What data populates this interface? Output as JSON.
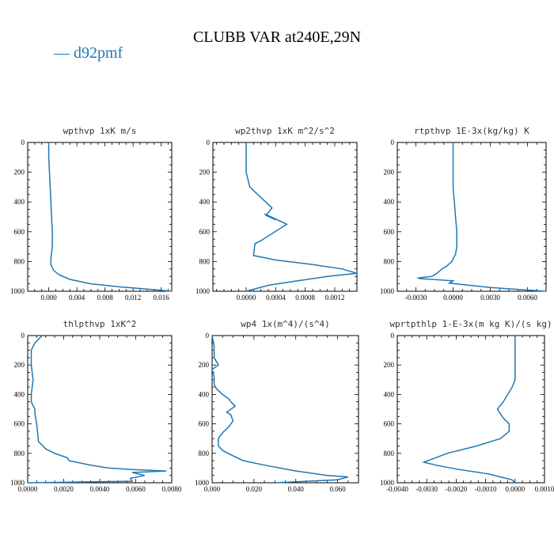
{
  "figure": {
    "title": "CLUBB VAR at240E,29N",
    "legend": "— d92pmf",
    "line_color": "#1f77b4"
  },
  "chart_data": [
    {
      "type": "line",
      "title": "wpthvp  1xK m/s",
      "xlim": [
        -0.003,
        0.0175
      ],
      "ylim": [
        1000,
        0
      ],
      "xticks": [
        0.0,
        0.004,
        0.008,
        0.012,
        0.016
      ],
      "xtick_labels": [
        "0.000",
        "0.004",
        "0.008",
        "0.012",
        "0.016"
      ],
      "yticks": [
        0,
        200,
        400,
        600,
        800,
        1000
      ],
      "series": [
        {
          "x": [
            0.0,
            0.0,
            0.0001,
            0.0002,
            0.0003,
            0.0004,
            0.0005,
            0.0005,
            0.0003,
            0.0003,
            0.0007,
            0.0015,
            0.003,
            0.006,
            0.01,
            0.014,
            0.0175
          ],
          "y": [
            0,
            100,
            200,
            300,
            400,
            500,
            600,
            700,
            780,
            820,
            860,
            890,
            920,
            950,
            970,
            985,
            1000
          ]
        }
      ]
    },
    {
      "type": "line",
      "title": "wp2thvp  1xK m^2/s^2",
      "xlim": [
        -0.00045,
        0.0015
      ],
      "ylim": [
        1000,
        0
      ],
      "xticks": [
        0.0,
        0.0004,
        0.0008,
        0.0012
      ],
      "xtick_labels": [
        "0.0000",
        "0.0004",
        "0.0008",
        "0.0012"
      ],
      "yticks": [
        0,
        200,
        400,
        600,
        800,
        1000
      ],
      "series": [
        {
          "x": [
            0.0,
            0.0,
            0.0,
            5e-05,
            0.0002,
            0.00035,
            0.00027,
            0.0004,
            0.00025,
            0.00055,
            0.0002,
            0.00012,
            0.0001,
            0.0004,
            0.0009,
            0.0013,
            0.0015,
            0.0011,
            0.0007,
            0.0003,
            0.0
          ],
          "y": [
            0,
            100,
            200,
            300,
            370,
            440,
            490,
            520,
            480,
            550,
            660,
            680,
            760,
            790,
            820,
            850,
            880,
            900,
            930,
            960,
            1000
          ]
        }
      ]
    },
    {
      "type": "line",
      "title": "rtpthvp  1E-3x(kg/kg) K",
      "xlim": [
        -0.0045,
        0.0075
      ],
      "ylim": [
        1000,
        0
      ],
      "xticks": [
        -0.003,
        0.0,
        0.003,
        0.006
      ],
      "xtick_labels": [
        "-0.0030",
        "0.0000",
        "0.0030",
        "0.0060"
      ],
      "yticks": [
        0,
        200,
        400,
        600,
        800,
        1000
      ],
      "series": [
        {
          "x": [
            0.0,
            0.0,
            0.0,
            0.0,
            0.0001,
            0.0002,
            0.0003,
            0.0003,
            0.0002,
            -0.0001,
            -0.0005,
            -0.0009,
            -0.0013,
            -0.0017,
            -0.0028,
            -0.0027,
            0.0,
            -0.0003,
            0.003,
            0.0075
          ],
          "y": [
            0,
            100,
            200,
            300,
            400,
            500,
            600,
            700,
            750,
            800,
            830,
            850,
            880,
            900,
            910,
            915,
            930,
            945,
            975,
            1000
          ]
        }
      ]
    },
    {
      "type": "line",
      "title": "thlpthvp  1xK^2",
      "xlim": [
        0.0,
        0.008
      ],
      "ylim": [
        1000,
        0
      ],
      "xticks": [
        0.0,
        0.002,
        0.004,
        0.006,
        0.008
      ],
      "xtick_labels": [
        "0.0000",
        "0.0020",
        "0.0040",
        "0.0060",
        "0.0080"
      ],
      "yticks": [
        0,
        200,
        400,
        600,
        800,
        1000
      ],
      "series": [
        {
          "x": [
            0.0008,
            0.0004,
            0.0002,
            0.0002,
            0.0003,
            0.0002,
            0.0002,
            0.0004,
            0.0004,
            0.0005,
            0.0006,
            0.001,
            0.0015,
            0.0022,
            0.0023,
            0.0035,
            0.0045,
            0.0058,
            0.0077,
            0.0058,
            0.0065,
            0.0057,
            0.0058,
            0.0
          ],
          "y": [
            0,
            50,
            100,
            200,
            300,
            400,
            450,
            500,
            530,
            600,
            720,
            770,
            800,
            830,
            850,
            880,
            900,
            910,
            920,
            930,
            950,
            970,
            990,
            1000
          ]
        }
      ]
    },
    {
      "type": "line",
      "title": "wp4  1x(m^4)/(s^4)",
      "xlim": [
        0.0,
        0.07
      ],
      "ylim": [
        1000,
        0
      ],
      "xticks": [
        0.0,
        0.02,
        0.04,
        0.06
      ],
      "xtick_labels": [
        "0.000",
        "0.020",
        "0.040",
        "0.060"
      ],
      "yticks": [
        0,
        200,
        400,
        600,
        800,
        1000
      ],
      "series": [
        {
          "x": [
            0.0,
            0.001,
            0.001,
            0.003,
            0.0,
            0.001,
            0.001,
            0.002,
            0.005,
            0.008,
            0.009,
            0.011,
            0.007,
            0.009,
            0.01,
            0.008,
            0.005,
            0.003,
            0.003,
            0.005,
            0.009,
            0.015,
            0.025,
            0.04,
            0.055,
            0.065,
            0.06,
            0.03
          ],
          "y": [
            0,
            80,
            150,
            200,
            230,
            280,
            330,
            360,
            400,
            430,
            450,
            480,
            520,
            540,
            580,
            620,
            660,
            700,
            750,
            780,
            810,
            850,
            880,
            920,
            950,
            960,
            980,
            1000
          ]
        }
      ]
    },
    {
      "type": "line",
      "title": "wprtpthlp  1-E-3x(m kg K)/(s kg)",
      "xlim": [
        -0.004,
        0.001
      ],
      "ylim": [
        1000,
        0
      ],
      "xticks": [
        -0.004,
        -0.003,
        -0.002,
        -0.001,
        0.0,
        0.001
      ],
      "xtick_labels": [
        "-0.0040",
        "-0.0030",
        "-0.0020",
        "-0.0010",
        "0.0000",
        "0.0010"
      ],
      "yticks": [
        0,
        200,
        400,
        600,
        800,
        1000
      ],
      "series": [
        {
          "x": [
            0.0,
            0.0,
            0.0,
            -0.0001,
            -0.0004,
            -0.0006,
            -0.0005,
            -0.0004,
            -0.0002,
            -0.0002,
            -0.0005,
            -0.0013,
            -0.0023,
            -0.0027,
            -0.0031,
            -0.0027,
            -0.0019,
            -0.0009,
            -0.0005,
            -0.0001,
            0.0
          ],
          "y": [
            0,
            100,
            300,
            350,
            450,
            500,
            530,
            560,
            600,
            650,
            700,
            750,
            800,
            830,
            860,
            880,
            910,
            940,
            960,
            980,
            1000
          ]
        }
      ]
    }
  ]
}
